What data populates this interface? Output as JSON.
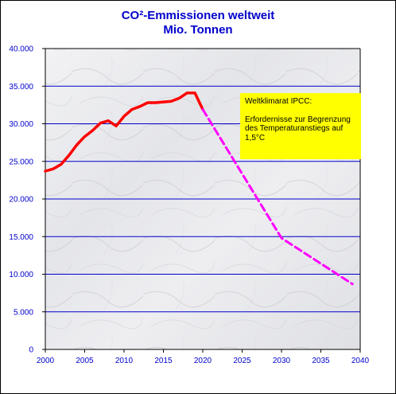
{
  "chart_data": {
    "type": "line",
    "title_line1": "CO²-Emmissionen weltweit",
    "title_line2": "Mio. Tonnen",
    "xlabel": "",
    "ylabel": "",
    "xlim": [
      2000,
      2040
    ],
    "ylim": [
      0,
      40000
    ],
    "grid": true,
    "x_ticks": [
      "2000",
      "2005",
      "2010",
      "2015",
      "2020",
      "2025",
      "2030",
      "2035",
      "2040"
    ],
    "y_ticks": [
      "0",
      "5.000",
      "10.000",
      "15.000",
      "20.000",
      "25.000",
      "30.000",
      "35.000",
      "40.000"
    ],
    "series": [
      {
        "style": "solid",
        "color": "#ff0000",
        "x": [
          2000,
          2001,
          2002,
          2003,
          2004,
          2005,
          2006,
          2007,
          2008,
          2009,
          2010,
          2011,
          2012,
          2013,
          2014,
          2015,
          2016,
          2017,
          2018,
          2019,
          2020
        ],
        "y": [
          23700,
          24000,
          24600,
          25800,
          27200,
          28300,
          29100,
          30100,
          30400,
          29700,
          31000,
          31900,
          32300,
          32800,
          32800,
          32900,
          33000,
          33400,
          34100,
          34100,
          31900
        ]
      },
      {
        "style": "dashed",
        "color": "#ff00ff",
        "x": [
          2020,
          2030,
          2039
        ],
        "y": [
          31900,
          14800,
          8700
        ]
      }
    ],
    "annotation": {
      "title": "Weltklimarat  IPCC:",
      "text": "Erfordernisse zur Begrenzung des Temperaturanstiegs  auf 1,5°C",
      "background": "#ffff00"
    },
    "colors": {
      "axis_text": "#0000cc",
      "gridlines": "#0000cc",
      "plot_background": "marble-grey"
    }
  }
}
